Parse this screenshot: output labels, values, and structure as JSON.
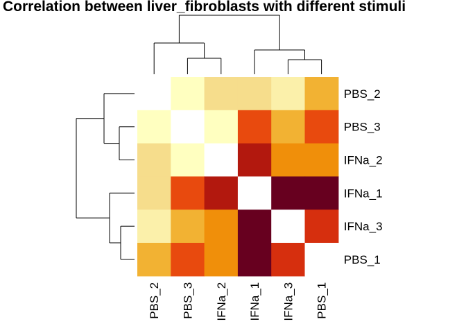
{
  "chart_data": {
    "type": "heatmap",
    "title": "Correlation between liver_fibroblasts with different stimuli",
    "row_labels": [
      "PBS_2",
      "PBS_3",
      "IFNa_2",
      "IFNa_1",
      "IFNa_3",
      "PBS_1"
    ],
    "col_labels": [
      "PBS_2",
      "PBS_3",
      "IFNa_2",
      "IFNa_1",
      "IFNa_3",
      "PBS_1"
    ],
    "color_scale": [
      "#67001F",
      "#B2180E",
      "#D62F0E",
      "#E84A0E",
      "#F08F0A",
      "#F2B233",
      "#F6DD8C",
      "#FBF0AA",
      "#FFFFC0",
      "#FFFFFF"
    ],
    "cell_levels": [
      [
        9,
        8,
        6,
        6,
        7,
        5
      ],
      [
        8,
        9,
        8,
        3,
        5,
        3
      ],
      [
        6,
        8,
        9,
        1,
        4,
        4
      ],
      [
        6,
        3,
        1,
        9,
        0,
        0
      ],
      [
        7,
        5,
        4,
        0,
        9,
        2
      ],
      [
        5,
        3,
        4,
        0,
        2,
        9
      ]
    ],
    "row_dendrogram": "left",
    "col_dendrogram": "top",
    "legend": "none",
    "grid": false
  }
}
